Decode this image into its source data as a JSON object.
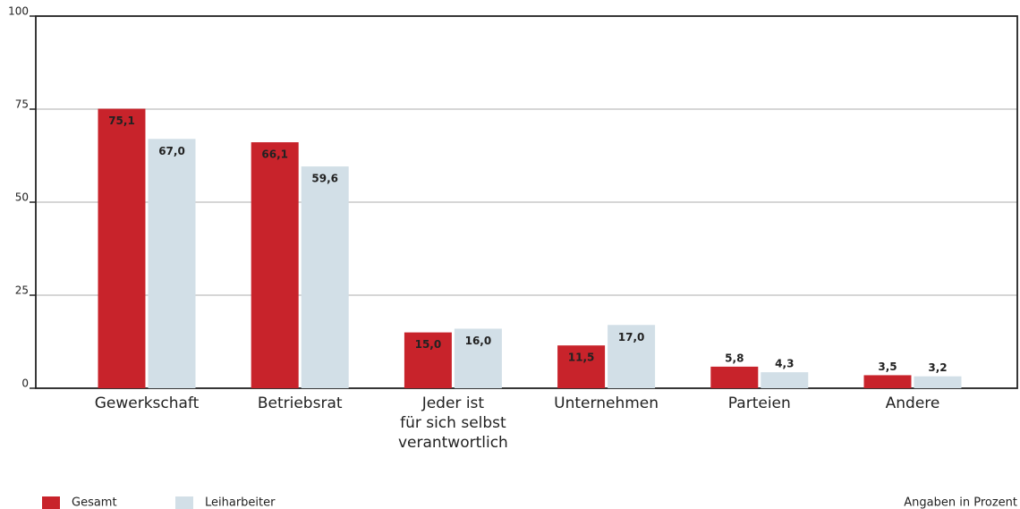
{
  "chart_data": {
    "type": "bar",
    "categories": [
      "Gewerkschaft",
      "Betriebsrat",
      "Jeder ist\nfür sich selbst\nverantwortlich",
      "Unternehmen",
      "Parteien",
      "Andere"
    ],
    "series": [
      {
        "name": "Gesamt",
        "color": "#c8232b",
        "values": [
          75.1,
          66.1,
          15.0,
          11.5,
          5.8,
          3.5
        ],
        "value_labels": [
          "75,1",
          "66,1",
          "15,0",
          "11,5",
          "5,8",
          "3,5"
        ]
      },
      {
        "name": "Leiharbeiter",
        "color": "#d2dfe7",
        "values": [
          67.0,
          59.6,
          16.0,
          17.0,
          4.3,
          3.2
        ],
        "value_labels": [
          "67,0",
          "59,6",
          "16,0",
          "17,0",
          "4,3",
          "3,2"
        ]
      }
    ],
    "ylim": [
      0,
      100
    ],
    "yticks": [
      0,
      25,
      50,
      75,
      100
    ],
    "grid": true,
    "note": "Angaben in Prozent"
  }
}
